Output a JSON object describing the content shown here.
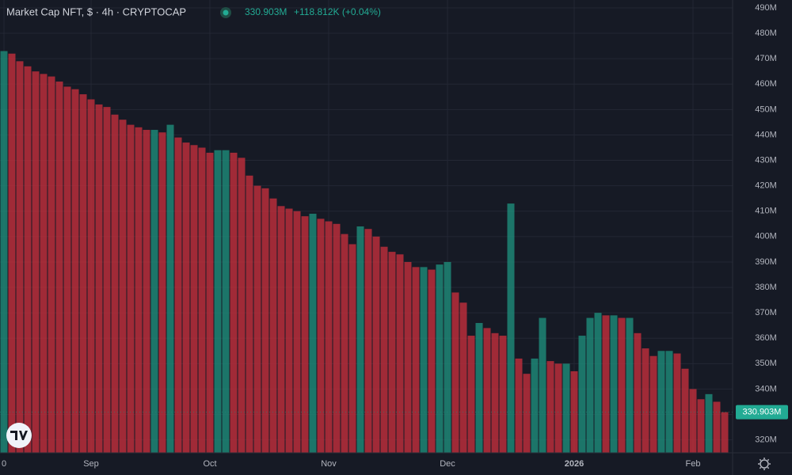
{
  "chart_data": {
    "type": "bar",
    "title": "Market Cap NFT, $ · 4h · CRYPTOCAP",
    "header_price": "330.903M",
    "header_change": "+118.812K (+0.04%)",
    "up_color": "#1f8f7c",
    "down_color": "#c8303c",
    "grid": true,
    "categories": [
      "0",
      null,
      null,
      null,
      null,
      null,
      null,
      null,
      null,
      null,
      null,
      "Sep",
      null,
      null,
      null,
      null,
      null,
      null,
      null,
      null,
      null,
      null,
      null,
      null,
      null,
      null,
      "Oct",
      null,
      null,
      null,
      null,
      null,
      null,
      null,
      null,
      null,
      null,
      null,
      null,
      null,
      null,
      "Nov",
      null,
      null,
      null,
      null,
      null,
      null,
      null,
      null,
      null,
      null,
      null,
      null,
      null,
      null,
      "Dec",
      null,
      null,
      null,
      null,
      null,
      null,
      null,
      null,
      null,
      null,
      null,
      null,
      null,
      null,
      null,
      "2026",
      null,
      null,
      null,
      null,
      null,
      null,
      null,
      null,
      null,
      null,
      null,
      null,
      null,
      null,
      "Feb",
      null,
      null,
      null,
      null
    ],
    "values": [
      473,
      472,
      469,
      467,
      465,
      464,
      463,
      461,
      459,
      458,
      456,
      454,
      452,
      451,
      448,
      446,
      444,
      443,
      442,
      442,
      441,
      444,
      439,
      437,
      436,
      435,
      433,
      434,
      434,
      433,
      431,
      424,
      420,
      419,
      415,
      412,
      411,
      410,
      408,
      409,
      407,
      406,
      405,
      401,
      397,
      404,
      403,
      400,
      396,
      394,
      393,
      390,
      388,
      388,
      387,
      389,
      390,
      378,
      374,
      361,
      366,
      364,
      362,
      361,
      413,
      352,
      346,
      352,
      368,
      351,
      350,
      350,
      347,
      361,
      368,
      370,
      369,
      369,
      368,
      368,
      362,
      356,
      353,
      355,
      355,
      354,
      348,
      340,
      336,
      338,
      335,
      330.903
    ],
    "last_price": {
      "value": 330.903,
      "label": "330.903M"
    },
    "ylim": [
      314.9,
      493.1
    ],
    "yticks": [
      {
        "value": 320,
        "label": "320M"
      },
      {
        "value": 330,
        "label": "330M"
      },
      {
        "value": 340,
        "label": "340M"
      },
      {
        "value": 350,
        "label": "350M"
      },
      {
        "value": 360,
        "label": "360M"
      },
      {
        "value": 370,
        "label": "370M"
      },
      {
        "value": 380,
        "label": "380M"
      },
      {
        "value": 390,
        "label": "390M"
      },
      {
        "value": 400,
        "label": "400M"
      },
      {
        "value": 410,
        "label": "410M"
      },
      {
        "value": 420,
        "label": "420M"
      },
      {
        "value": 430,
        "label": "430M"
      },
      {
        "value": 440,
        "label": "440M"
      },
      {
        "value": 450,
        "label": "450M"
      },
      {
        "value": 460,
        "label": "460M"
      },
      {
        "value": 470,
        "label": "470M"
      },
      {
        "value": 480,
        "label": "480M"
      },
      {
        "value": 490,
        "label": "490M"
      }
    ]
  }
}
